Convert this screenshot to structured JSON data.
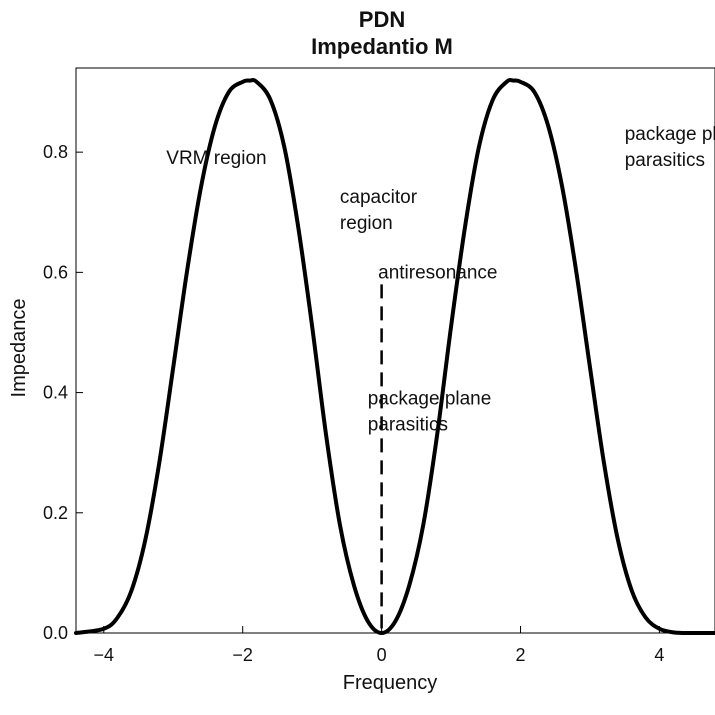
{
  "chart_data": {
    "type": "line",
    "title": "PDN",
    "subtitle": "Impedantio M",
    "xlabel": "Frequency",
    "ylabel": "Impedance",
    "xlim": [
      -4.4,
      4.8
    ],
    "ylim": [
      0,
      0.94
    ],
    "xticks": [
      -4,
      -2,
      0,
      2,
      4
    ],
    "xtick_labels": [
      "−4",
      "−2",
      "0",
      "2",
      "4"
    ],
    "yticks": [
      0,
      0.2,
      0.4,
      0.6,
      0.8
    ],
    "ytick_labels": [
      "0.0",
      "0.2",
      "0.4",
      "0.6",
      "0.8"
    ],
    "grid": false,
    "series": [
      {
        "color": "#000000",
        "x": [
          -4.4,
          -4.0,
          -3.8,
          -3.6,
          -3.4,
          -3.2,
          -3.0,
          -2.8,
          -2.6,
          -2.4,
          -2.2,
          -2.0,
          -1.9,
          -1.8,
          -1.6,
          -1.4,
          -1.2,
          -1.0,
          -0.8,
          -0.6,
          -0.4,
          -0.2,
          0.0,
          0.2,
          0.4,
          0.6,
          0.8,
          1.0,
          1.2,
          1.4,
          1.6,
          1.8,
          1.9,
          2.0,
          2.2,
          2.4,
          2.6,
          2.8,
          3.0,
          3.2,
          3.4,
          3.6,
          3.8,
          4.0,
          4.2,
          4.4,
          4.8
        ],
        "y": [
          0.0,
          0.007,
          0.026,
          0.071,
          0.156,
          0.284,
          0.442,
          0.603,
          0.742,
          0.843,
          0.9,
          0.917,
          0.919,
          0.917,
          0.887,
          0.808,
          0.675,
          0.51,
          0.33,
          0.18,
          0.08,
          0.02,
          0.0,
          0.02,
          0.08,
          0.18,
          0.33,
          0.51,
          0.675,
          0.808,
          0.887,
          0.917,
          0.919,
          0.917,
          0.9,
          0.843,
          0.742,
          0.603,
          0.442,
          0.284,
          0.156,
          0.071,
          0.026,
          0.007,
          0.001,
          0.0,
          0.0
        ]
      }
    ],
    "vline": {
      "x": 0,
      "y_top": 0.58,
      "style": "dashed"
    },
    "annotations": [
      {
        "text": [
          "VRM region"
        ],
        "x": -3.1,
        "y": 0.78
      },
      {
        "text": [
          "capacitor",
          "region"
        ],
        "x": -0.6,
        "y": 0.715
      },
      {
        "text": [
          "antiresonance"
        ],
        "x": -0.05,
        "y": 0.59
      },
      {
        "text": [
          "package plane",
          "parasitics"
        ],
        "x": -0.2,
        "y": 0.38
      },
      {
        "text": [
          "package plane",
          "parasitics"
        ],
        "x": 3.5,
        "y": 0.82
      }
    ]
  }
}
